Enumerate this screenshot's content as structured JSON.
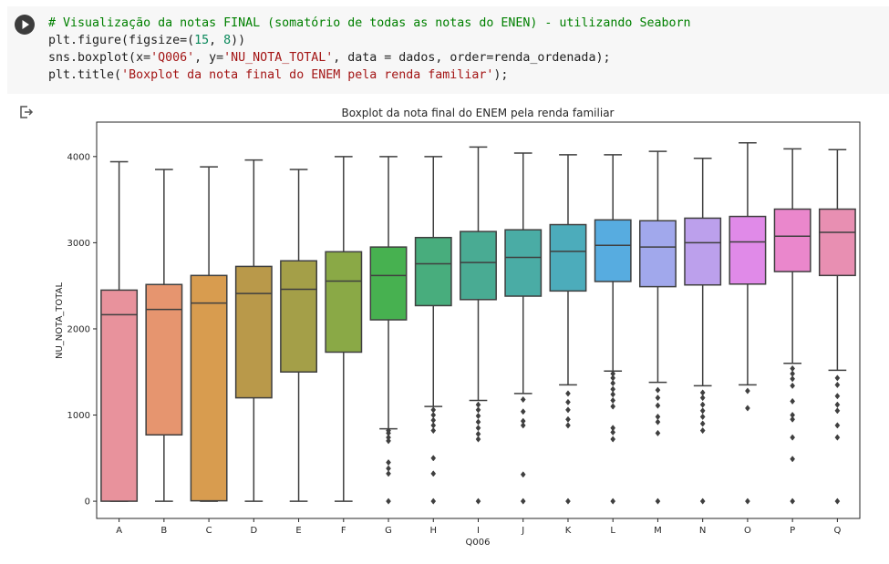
{
  "cell": {
    "run_button_icon": "play-icon",
    "code": {
      "l1_comment": "# Visualização da notas FINAL (somatório de todas as notas do ENEN) - utilizando Seaborn",
      "l2_a": "plt.figure(figsize=(",
      "l2_n1": "15",
      "l2_b": ", ",
      "l2_n2": "8",
      "l2_c": "))",
      "l3_a": "sns.boxplot(x=",
      "l3_s1": "'Q006'",
      "l3_b": ", y=",
      "l3_s2": "'NU_NOTA_TOTAL'",
      "l3_c": ", data = dados, order=renda_ordenada);",
      "l4_a": "plt.title(",
      "l4_s1": "'Boxplot da nota final do ENEM pela renda familiar'",
      "l4_b": ");"
    }
  },
  "output": {
    "icon": "output-arrow-icon"
  },
  "chart_data": {
    "type": "boxplot",
    "title": "Boxplot da nota final do ENEM pela renda familiar",
    "xlabel": "Q006",
    "ylabel": "NU_NOTA_TOTAL",
    "ylim": [
      -200,
      4400
    ],
    "yticks": [
      0,
      1000,
      2000,
      3000,
      4000
    ],
    "categories": [
      "A",
      "B",
      "C",
      "D",
      "E",
      "F",
      "G",
      "H",
      "I",
      "J",
      "K",
      "L",
      "M",
      "N",
      "O",
      "P",
      "Q"
    ],
    "colors": [
      "#e8929c",
      "#e6956f",
      "#d89c4f",
      "#b9994a",
      "#a49f48",
      "#8aa946",
      "#47b150",
      "#48ad7d",
      "#49ab93",
      "#4aaca5",
      "#4cacbb",
      "#57ace0",
      "#a1a8ec",
      "#bca0ec",
      "#e08ae8",
      "#ea87cc",
      "#e88fb2"
    ],
    "boxes": [
      {
        "cat": "A",
        "whislo": 0,
        "q1": 0,
        "med": 2165,
        "q3": 2450,
        "whishi": 3940,
        "fliers": []
      },
      {
        "cat": "B",
        "whislo": 0,
        "q1": 770,
        "med": 2225,
        "q3": 2515,
        "whishi": 3850,
        "fliers": []
      },
      {
        "cat": "C",
        "whislo": 0,
        "q1": 5,
        "med": 2300,
        "q3": 2620,
        "whishi": 3880,
        "fliers": []
      },
      {
        "cat": "D",
        "whislo": 0,
        "q1": 1200,
        "med": 2410,
        "q3": 2725,
        "whishi": 3960,
        "fliers": []
      },
      {
        "cat": "E",
        "whislo": 0,
        "q1": 1500,
        "med": 2460,
        "q3": 2790,
        "whishi": 3850,
        "fliers": []
      },
      {
        "cat": "F",
        "whislo": 0,
        "q1": 1730,
        "med": 2555,
        "q3": 2895,
        "whishi": 4000,
        "fliers": []
      },
      {
        "cat": "G",
        "whislo": 840,
        "q1": 2105,
        "med": 2620,
        "q3": 2950,
        "whishi": 4000,
        "fliers": [
          0,
          320,
          380,
          450,
          700,
          740,
          790,
          820
        ]
      },
      {
        "cat": "H",
        "whislo": 1100,
        "q1": 2270,
        "med": 2755,
        "q3": 3060,
        "whishi": 4000,
        "fliers": [
          0,
          320,
          500,
          820,
          880,
          940,
          1000,
          1060
        ]
      },
      {
        "cat": "I",
        "whislo": 1170,
        "q1": 2340,
        "med": 2770,
        "q3": 3130,
        "whishi": 4110,
        "fliers": [
          0,
          720,
          780,
          850,
          920,
          990,
          1060,
          1120
        ]
      },
      {
        "cat": "J",
        "whislo": 1250,
        "q1": 2380,
        "med": 2830,
        "q3": 3150,
        "whishi": 4040,
        "fliers": [
          0,
          310,
          880,
          930,
          1040,
          1180
        ]
      },
      {
        "cat": "K",
        "whislo": 1350,
        "q1": 2440,
        "med": 2900,
        "q3": 3210,
        "whishi": 4020,
        "fliers": [
          0,
          880,
          950,
          1060,
          1150,
          1250
        ]
      },
      {
        "cat": "L",
        "whislo": 1510,
        "q1": 2550,
        "med": 2970,
        "q3": 3265,
        "whishi": 4020,
        "fliers": [
          0,
          720,
          800,
          850,
          1100,
          1170,
          1240,
          1300,
          1370,
          1430,
          1480
        ]
      },
      {
        "cat": "M",
        "whislo": 1380,
        "q1": 2490,
        "med": 2950,
        "q3": 3255,
        "whishi": 4060,
        "fliers": [
          0,
          790,
          920,
          980,
          1110,
          1200,
          1290
        ]
      },
      {
        "cat": "N",
        "whislo": 1340,
        "q1": 2510,
        "med": 3000,
        "q3": 3285,
        "whishi": 3980,
        "fliers": [
          0,
          820,
          900,
          980,
          1050,
          1120,
          1200,
          1260
        ]
      },
      {
        "cat": "O",
        "whislo": 1350,
        "q1": 2520,
        "med": 3010,
        "q3": 3305,
        "whishi": 4160,
        "fliers": [
          0,
          1080,
          1280
        ]
      },
      {
        "cat": "P",
        "whislo": 1600,
        "q1": 2665,
        "med": 3075,
        "q3": 3390,
        "whishi": 4090,
        "fliers": [
          0,
          490,
          740,
          950,
          1000,
          1160,
          1340,
          1420,
          1480,
          1540
        ]
      },
      {
        "cat": "Q",
        "whislo": 1520,
        "q1": 2620,
        "med": 3120,
        "q3": 3390,
        "whishi": 4080,
        "fliers": [
          0,
          740,
          880,
          1050,
          1120,
          1220,
          1350,
          1430
        ]
      }
    ]
  }
}
